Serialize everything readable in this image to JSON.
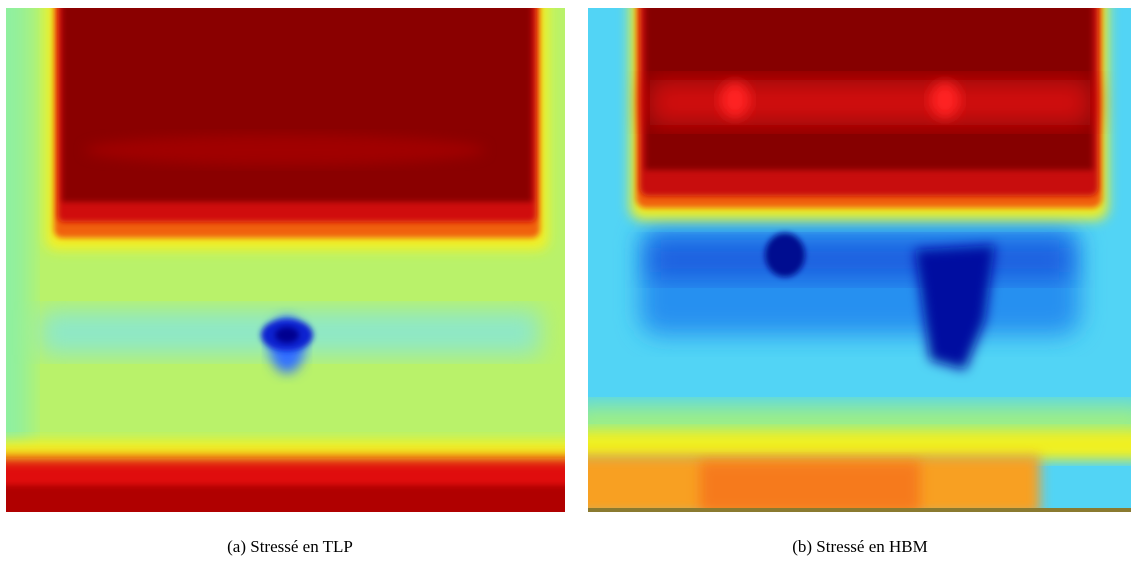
{
  "figures": [
    {
      "caption": "(a) Stressé en TLP"
    },
    {
      "caption": "(b) Stressé en HBM"
    }
  ]
}
